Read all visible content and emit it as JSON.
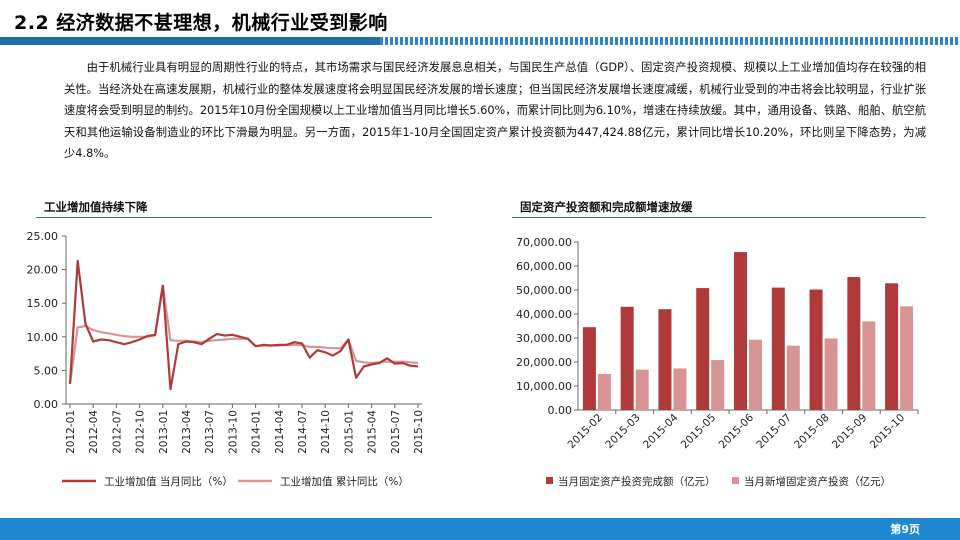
{
  "slide": {
    "title": "2.2 经济数据不甚理想，机械行业受到影响",
    "paragraph": "由于机械行业具有明显的周期性行业的特点，其市场需求与国民经济发展息息相关，与国民生产总值（GDP）、固定资产投资规模、规模以上工业增加值均存在较强的相关性。当经济处在高速发展期，机械行业的整体发展速度将会明显国民经济发展的增长速度；但当国民经济发展增长速度减缓，机械行业受到的冲击将会比较明显，行业扩张速度将会受到明显的制约。2015年10月份全国规模以上工业增加值当月同比增长5.60%，而累计同比则为6.10%，增速在持续放缓。其中，通用设备、铁路、船舶、航空航天和其他运输设备制造业的环比下滑最为明显。另一方面，2015年1-10月全国固定资产累计投资额为447,424.88亿元，累计同比增长10.20%，环比则呈下降态势，为减少4.8%。",
    "page_number": "第9页",
    "colors": {
      "accent": "#1e6fa8",
      "footer": "#1e88d0",
      "series_dark": "#b03a3a",
      "series_light": "#d89494"
    }
  },
  "chart_data": [
    {
      "type": "line",
      "title": "工业增加值持续下降",
      "ylim": [
        0,
        25
      ],
      "y_ticks": [
        "25.00",
        "20.00",
        "15.00",
        "10.00",
        "5.00",
        "0.00"
      ],
      "y_tick_values": [
        25,
        20,
        15,
        10,
        5,
        0
      ],
      "x_ticks": [
        "2012-01",
        "2012-04",
        "2012-07",
        "2012-10",
        "2013-01",
        "2013-04",
        "2013-07",
        "2013-10",
        "2014-01",
        "2014-04",
        "2014-07",
        "2014-10",
        "2015-01",
        "2015-04",
        "2015-07",
        "2015-10"
      ],
      "x_tick_index": [
        0,
        3,
        6,
        9,
        12,
        15,
        18,
        21,
        24,
        27,
        30,
        33,
        36,
        39,
        42,
        45
      ],
      "x_count": 46,
      "legend_position": "bottom",
      "series": [
        {
          "name": "工业增加值 当月同比（%）",
          "color": "#b03a3a",
          "values": [
            3.0,
            21.3,
            11.9,
            9.3,
            9.6,
            9.5,
            9.2,
            8.9,
            9.2,
            9.6,
            10.1,
            10.3,
            17.6,
            2.2,
            8.9,
            9.3,
            9.2,
            8.9,
            9.7,
            10.4,
            10.2,
            10.3,
            10.0,
            9.7,
            8.6,
            8.8,
            8.7,
            8.8,
            8.8,
            9.2,
            9.0,
            6.9,
            8.0,
            7.7,
            7.2,
            7.9,
            9.6,
            3.9,
            5.6,
            5.9,
            6.1,
            6.8,
            6.0,
            6.1,
            5.7,
            5.6
          ]
        },
        {
          "name": "工业增加值 累计同比（%）",
          "color": "#d89494",
          "values": [
            3.0,
            11.4,
            11.6,
            11.0,
            10.7,
            10.5,
            10.3,
            10.1,
            10.0,
            10.0,
            10.0,
            10.2,
            17.6,
            9.5,
            9.4,
            9.4,
            9.3,
            9.2,
            9.4,
            9.5,
            9.6,
            9.7,
            9.7,
            9.7,
            8.6,
            8.7,
            8.7,
            8.7,
            8.8,
            8.8,
            8.8,
            8.5,
            8.5,
            8.4,
            8.3,
            8.3,
            9.6,
            6.4,
            6.2,
            6.1,
            6.2,
            6.3,
            6.3,
            6.3,
            6.2,
            6.1
          ]
        }
      ]
    },
    {
      "type": "bar",
      "title": "固定资产投资额和完成额增速放缓",
      "ylim": [
        0,
        70000
      ],
      "y_ticks": [
        "70,000.00",
        "60,000.00",
        "50,000.00",
        "40,000.00",
        "30,000.00",
        "20,000.00",
        "10,000.00",
        "0.00"
      ],
      "y_tick_values": [
        70000,
        60000,
        50000,
        40000,
        30000,
        20000,
        10000,
        0
      ],
      "categories": [
        "2015-02",
        "2015-03",
        "2015-04",
        "2015-05",
        "2015-06",
        "2015-07",
        "2015-08",
        "2015-09",
        "2015-10"
      ],
      "legend_position": "bottom",
      "series": [
        {
          "name": "当月固定资产投资完成额（亿元）",
          "color": "#b03a3a",
          "values": [
            34500,
            43000,
            42000,
            50800,
            65800,
            51000,
            50200,
            55400,
            52800
          ]
        },
        {
          "name": "当月新增固定资产投资（亿元）",
          "color": "#d89494",
          "values": [
            15000,
            16800,
            17300,
            20800,
            29300,
            26800,
            29800,
            36900,
            43200
          ]
        }
      ]
    }
  ]
}
